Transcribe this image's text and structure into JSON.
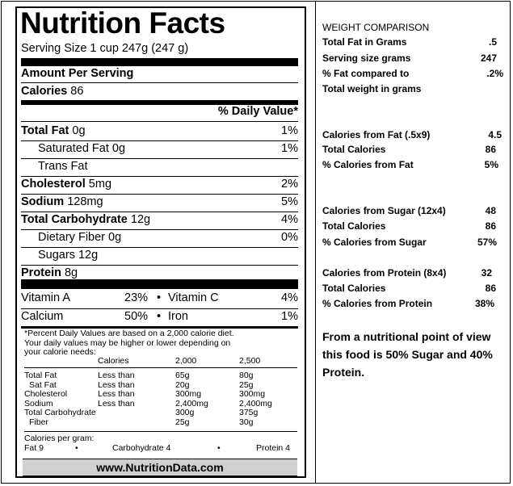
{
  "label": {
    "title": "Nutrition Facts",
    "serving": "Serving Size 1 cup 247g (247 g)",
    "amount_per_serving": "Amount Per Serving",
    "calories_label": "Calories",
    "calories_value": "86",
    "daily_value_header": "% Daily Value*",
    "nutrients": [
      {
        "name": "Total Fat",
        "amount": "0g",
        "dv": "1%"
      },
      {
        "name": "Saturated Fat",
        "amount": "0g",
        "dv": "1%"
      },
      {
        "name": "Trans Fat",
        "amount": "",
        "dv": ""
      },
      {
        "name": "Cholesterol",
        "amount": "5mg",
        "dv": "2%"
      },
      {
        "name": "Sodium",
        "amount": "128mg",
        "dv": "5%"
      },
      {
        "name": "Total Carbohydrate",
        "amount": "12g",
        "dv": "4%"
      },
      {
        "name": "Dietary Fiber",
        "amount": "0g",
        "dv": "0%"
      },
      {
        "name": "Sugars",
        "amount": "12g",
        "dv": ""
      },
      {
        "name": "Protein",
        "amount": "8g",
        "dv": ""
      }
    ],
    "vitamins": [
      {
        "left_name": "Vitamin A",
        "left_dv": "23%",
        "right_name": "Vitamin C",
        "right_dv": "4%"
      },
      {
        "left_name": "Calcium",
        "left_dv": "50%",
        "right_name": "Iron",
        "right_dv": "1%"
      }
    ],
    "bullet": "•",
    "footnote_1": "*Percent Daily Values are based on a 2,000 calorie diet.",
    "footnote_2": "Your daily values may be higher or lower depending on",
    "footnote_3": "your calorie needs:",
    "ref_table": {
      "header": [
        "",
        "Calories",
        "2,000",
        "2,500"
      ],
      "rows": [
        [
          "Total Fat",
          "Less than",
          "65g",
          "80g"
        ],
        [
          "Sat Fat",
          "Less than",
          "20g",
          "25g"
        ],
        [
          "Cholesterol",
          "Less than",
          "300mg",
          "300mg"
        ],
        [
          "Sodium",
          "Less than",
          "2,400mg",
          "2,400mg"
        ],
        [
          "Total Carbohydrate",
          "",
          "300g",
          "375g"
        ],
        [
          "Fiber",
          "",
          "25g",
          "30g"
        ]
      ]
    },
    "calories_per_gram": "Calories per gram:",
    "cpg_fat": "Fat 9",
    "cpg_carb": "Carbohydrate 4",
    "cpg_protein": "Protein 4",
    "website": "www.NutritionData.com"
  },
  "comparison": {
    "heading": "WEIGHT COMPARISON",
    "groups": [
      [
        {
          "label": "Total Fat in Grams",
          "value": ".5"
        },
        {
          "label": "Serving size grams",
          "value": "247"
        },
        {
          "label": "% Fat compared to",
          "value": ".2%"
        },
        {
          "label": "Total weight in grams",
          "value": ""
        }
      ],
      [
        {
          "label": "Calories from Fat (.5x9)",
          "value": "4.5"
        },
        {
          "label": "Total Calories",
          "value": "86"
        },
        {
          "label": "% Calories from Fat",
          "value": "5%"
        }
      ],
      [
        {
          "label": "Calories from Sugar (12x4)",
          "value": "48"
        },
        {
          "label": "Total Calories",
          "value": "86"
        },
        {
          "label": "% Calories from Sugar",
          "value": "57%"
        }
      ],
      [
        {
          "label": "Calories from Protein (8x4)",
          "value": "32"
        },
        {
          "label": "Total Calories",
          "value": "86"
        },
        {
          "label": "% Calories from Protein",
          "value": "38%"
        }
      ]
    ],
    "summary": "From a nutritional point of view this food is 50% Sugar and 40% Protein."
  }
}
